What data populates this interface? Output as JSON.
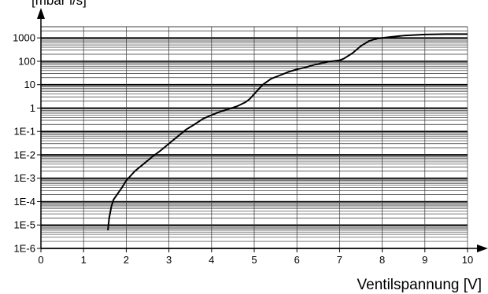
{
  "chart_data": {
    "type": "line",
    "ylabel": "[mbar l/s]",
    "xlabel": "Ventilspannung [V]",
    "y_scale": "log",
    "xlim": [
      0,
      10
    ],
    "ylim": [
      1e-06,
      3000
    ],
    "x_ticks": [
      {
        "value": 0,
        "label": "0"
      },
      {
        "value": 1,
        "label": "1"
      },
      {
        "value": 2,
        "label": "2"
      },
      {
        "value": 3,
        "label": "3"
      },
      {
        "value": 4,
        "label": "4"
      },
      {
        "value": 5,
        "label": "5"
      },
      {
        "value": 6,
        "label": "6"
      },
      {
        "value": 7,
        "label": "7"
      },
      {
        "value": 8,
        "label": "8"
      },
      {
        "value": 9,
        "label": "9"
      },
      {
        "value": 10,
        "label": "10"
      }
    ],
    "y_ticks": [
      {
        "value": 1e-06,
        "label": "1E-6"
      },
      {
        "value": 1e-05,
        "label": "1E-5"
      },
      {
        "value": 0.0001,
        "label": "1E-4"
      },
      {
        "value": 0.001,
        "label": "1E-3"
      },
      {
        "value": 0.01,
        "label": "1E-2"
      },
      {
        "value": 0.1,
        "label": "1E-1"
      },
      {
        "value": 1,
        "label": "1"
      },
      {
        "value": 10,
        "label": "10"
      },
      {
        "value": 100,
        "label": "100"
      },
      {
        "value": 1000,
        "label": "1000"
      }
    ],
    "grid": true,
    "series": [
      {
        "x": [
          1.57,
          1.6,
          1.65,
          1.7,
          1.8,
          1.9,
          2.0,
          2.2,
          2.4,
          2.6,
          2.8,
          3.0,
          3.2,
          3.4,
          3.6,
          3.8,
          4.0,
          4.2,
          4.4,
          4.6,
          4.8,
          4.9,
          5.0,
          5.2,
          5.4,
          5.6,
          5.8,
          6.0,
          6.2,
          6.4,
          6.6,
          6.8,
          7.0,
          7.1,
          7.3,
          7.5,
          7.7,
          7.9,
          8.2,
          8.5,
          9.0,
          9.5,
          10.0
        ],
        "y": [
          6e-06,
          2e-05,
          6e-05,
          0.00012,
          0.00022,
          0.0004,
          0.0008,
          0.002,
          0.004,
          0.008,
          0.015,
          0.03,
          0.06,
          0.12,
          0.2,
          0.35,
          0.5,
          0.7,
          0.9,
          1.2,
          1.8,
          2.5,
          4,
          10,
          18,
          25,
          35,
          45,
          55,
          70,
          85,
          100,
          110,
          130,
          220,
          450,
          750,
          950,
          1100,
          1250,
          1400,
          1450,
          1450
        ]
      }
    ],
    "colors": {
      "line": "#000000",
      "grid_major": "#000000",
      "grid_minor": "#333333"
    }
  }
}
